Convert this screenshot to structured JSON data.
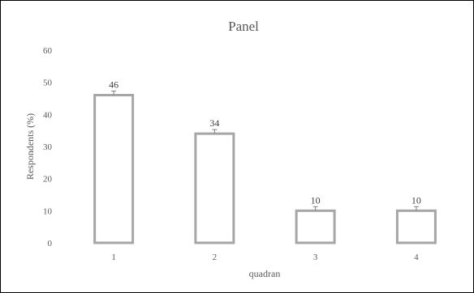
{
  "chart_data": {
    "type": "bar",
    "title": "Panel",
    "xlabel": "quadran",
    "ylabel": "Respondents (%)",
    "categories": [
      "1",
      "2",
      "3",
      "4"
    ],
    "values": [
      46,
      34,
      10,
      10
    ],
    "data_labels": [
      "46",
      "34",
      "10",
      "10"
    ],
    "error_bars": true,
    "ylim": [
      0,
      60
    ],
    "yticks": [
      "0",
      "10",
      "20",
      "30",
      "40",
      "50",
      "60"
    ],
    "grid": false,
    "legend": "none",
    "bar_fill": "#ffffff",
    "bar_stroke": "#a6a6a6",
    "text_color": "#595959",
    "border_color": "#000000"
  }
}
